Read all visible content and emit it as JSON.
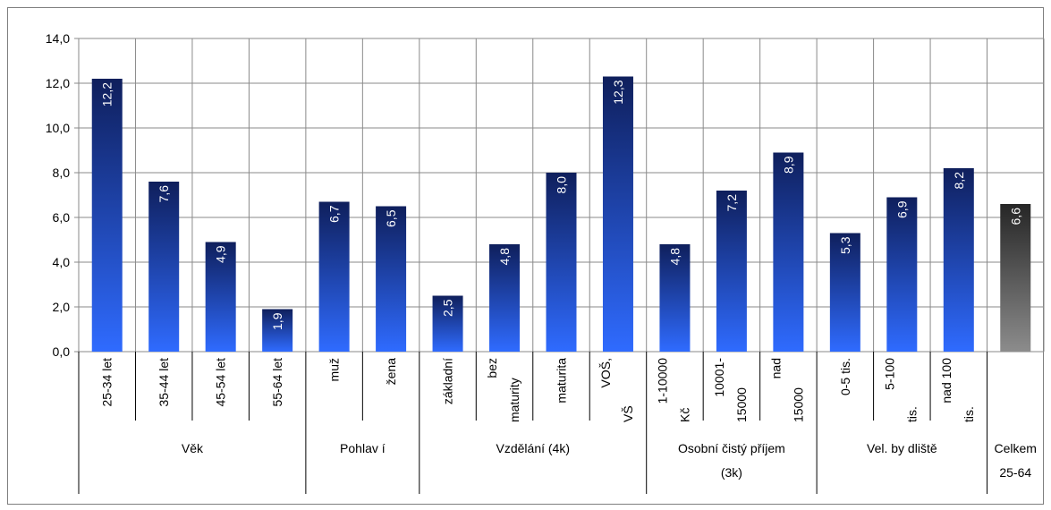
{
  "chart_data": {
    "type": "bar",
    "ylim": [
      0,
      14
    ],
    "yticks": [
      "0,0",
      "2,0",
      "4,0",
      "6,0",
      "8,0",
      "10,0",
      "12,0",
      "14,0"
    ],
    "grid": true,
    "legend": "none",
    "groups": [
      {
        "label": "Věk",
        "label_lines": [
          "Věk"
        ],
        "categories": [
          {
            "label_lines": [
              "25-34 let"
            ],
            "value": 12.2,
            "value_label": "12,2"
          },
          {
            "label_lines": [
              "35-44 let"
            ],
            "value": 7.6,
            "value_label": "7,6"
          },
          {
            "label_lines": [
              "45-54 let"
            ],
            "value": 4.9,
            "value_label": "4,9"
          },
          {
            "label_lines": [
              "55-64 let"
            ],
            "value": 1.9,
            "value_label": "1,9"
          }
        ]
      },
      {
        "label": "Pohlaví",
        "label_lines": [
          "Pohlav í"
        ],
        "categories": [
          {
            "label_lines": [
              "muž"
            ],
            "value": 6.7,
            "value_label": "6,7"
          },
          {
            "label_lines": [
              "žena"
            ],
            "value": 6.5,
            "value_label": "6,5"
          }
        ]
      },
      {
        "label": "Vzdělání (4k)",
        "label_lines": [
          "Vzdělání (4k)"
        ],
        "categories": [
          {
            "label_lines": [
              "základní"
            ],
            "value": 2.5,
            "value_label": "2,5"
          },
          {
            "label_lines": [
              "bez",
              "maturity"
            ],
            "value": 4.8,
            "value_label": "4,8"
          },
          {
            "label_lines": [
              "maturita"
            ],
            "value": 8.0,
            "value_label": "8,0"
          },
          {
            "label_lines": [
              "VOŠ,",
              "VŠ"
            ],
            "value": 12.3,
            "value_label": "12,3"
          }
        ]
      },
      {
        "label": "Osobní čistý příjem (3k)",
        "label_lines": [
          "Osobní čistý  příjem",
          "(3k)"
        ],
        "categories": [
          {
            "label_lines": [
              "1-10000",
              "Kč"
            ],
            "value": 4.8,
            "value_label": "4,8"
          },
          {
            "label_lines": [
              "10001-",
              "15000"
            ],
            "value": 7.2,
            "value_label": "7,2"
          },
          {
            "label_lines": [
              "nad",
              "15000"
            ],
            "value": 8.9,
            "value_label": "8,9"
          }
        ]
      },
      {
        "label": "Vel. bydliště",
        "label_lines": [
          "Vel. by dliště"
        ],
        "categories": [
          {
            "label_lines": [
              "0-5 tis."
            ],
            "value": 5.3,
            "value_label": "5,3"
          },
          {
            "label_lines": [
              "5-100",
              "tis."
            ],
            "value": 6.9,
            "value_label": "6,9"
          },
          {
            "label_lines": [
              "nad 100",
              "tis."
            ],
            "value": 8.2,
            "value_label": "8,2"
          }
        ]
      },
      {
        "label": "Celkem 25-64",
        "label_lines": [
          "Celkem",
          "25-64"
        ],
        "total": true,
        "categories": [
          {
            "label_lines": [],
            "value": 6.6,
            "value_label": "6,6"
          }
        ]
      }
    ],
    "colors": {
      "bar_top": "#0f1f5c",
      "bar_bottom": "#2f6bff",
      "total_top": "#262626",
      "total_bottom": "#8c8c8c",
      "grid": "#8a8a8a",
      "text": "#000000",
      "value_label": "#ffffff"
    }
  }
}
